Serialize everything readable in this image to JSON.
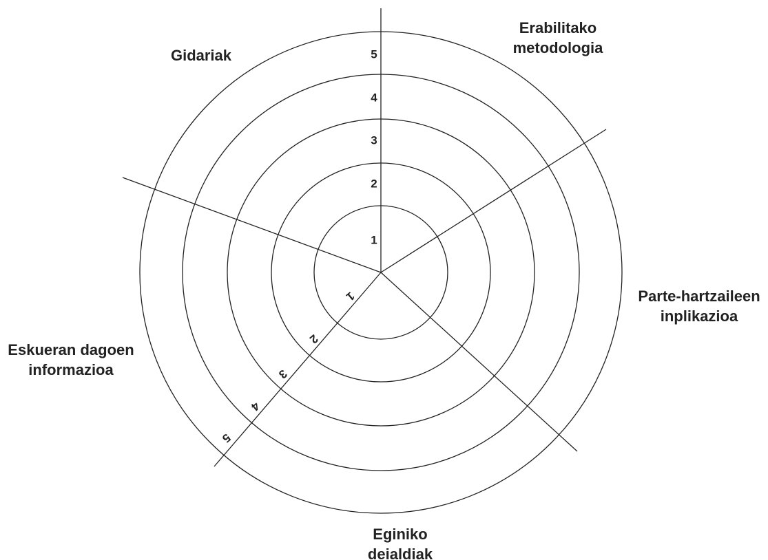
{
  "labels": [
    "Gidariak",
    [
      "Erabilitako",
      "metodologia"
    ],
    [
      "Parte-hartzaileen",
      "inplikazioa"
    ],
    [
      "Eginiko",
      "deialdiak"
    ],
    [
      "Eskueran dagoen",
      "informazioa"
    ]
  ],
  "scale_vertical": [
    "1",
    "2",
    "3",
    "4",
    "5"
  ],
  "scale_diagonal": [
    "1",
    "2",
    "3",
    "4",
    "5"
  ]
}
